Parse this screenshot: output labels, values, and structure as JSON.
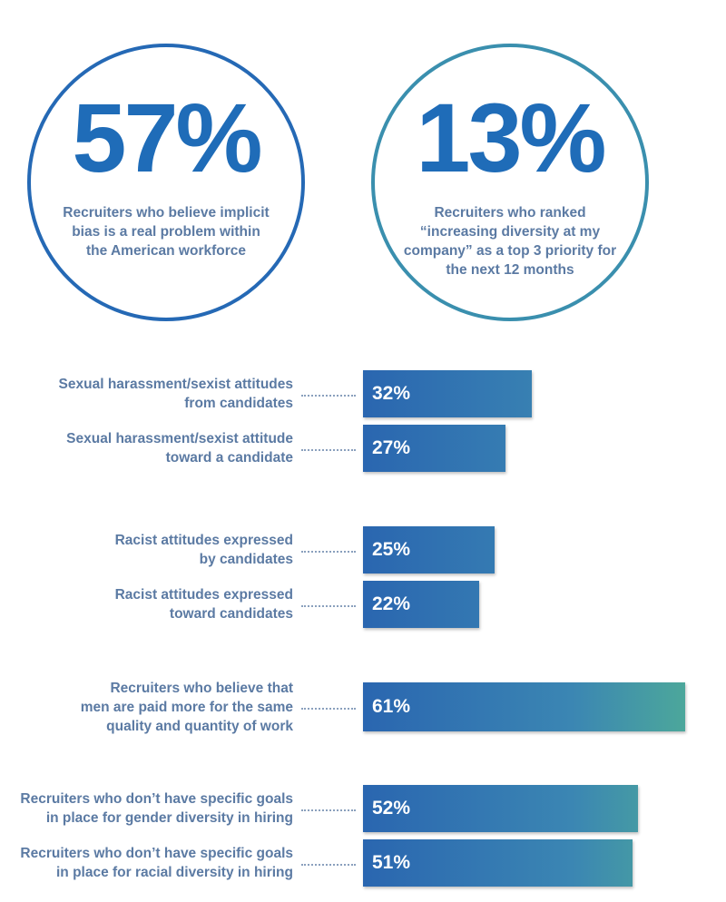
{
  "stats": [
    {
      "value": "57%",
      "description": "Recruiters who believe implicit bias is a real problem within the American workforce"
    },
    {
      "value": "13%",
      "description": "Recruiters who ranked “increasing diversity at my company” as a top 3 priority for the next 12 months"
    }
  ],
  "chart_data": {
    "type": "bar",
    "orientation": "horizontal",
    "title": "",
    "xlabel": "",
    "ylabel": "",
    "xlim": [
      0,
      100
    ],
    "grid": false,
    "legend": "none",
    "categories": [
      [
        "Sexual harassment/sexist attitudes",
        "from candidates"
      ],
      [
        "Sexual harassment/sexist attitude",
        "toward a candidate"
      ],
      [
        "Racist attitudes expressed",
        "by candidates"
      ],
      [
        "Racist attitudes expressed",
        "toward candidates"
      ],
      [
        "Recruiters who believe that",
        "men are paid more for the same",
        "quality and quantity of work"
      ],
      [
        "Recruiters who don’t have specific goals",
        "in place for gender diversity in hiring"
      ],
      [
        "Recruiters who don’t have specific goals",
        "in place for racial diversity in hiring"
      ]
    ],
    "values": [
      32,
      27,
      25,
      22,
      61,
      52,
      51
    ],
    "value_labels": [
      "32%",
      "27%",
      "25%",
      "22%",
      "61%",
      "52%",
      "51%"
    ],
    "colors": {
      "bar_start": "#2a66b0",
      "bar_end": "#4ca79b",
      "value_text": "#ffffff"
    }
  },
  "colors": {
    "circle_left": "#2569b5",
    "circle_right": "#3a8fae",
    "stat_number": "#1f6cb8",
    "label_text": "#5b7aa3"
  }
}
